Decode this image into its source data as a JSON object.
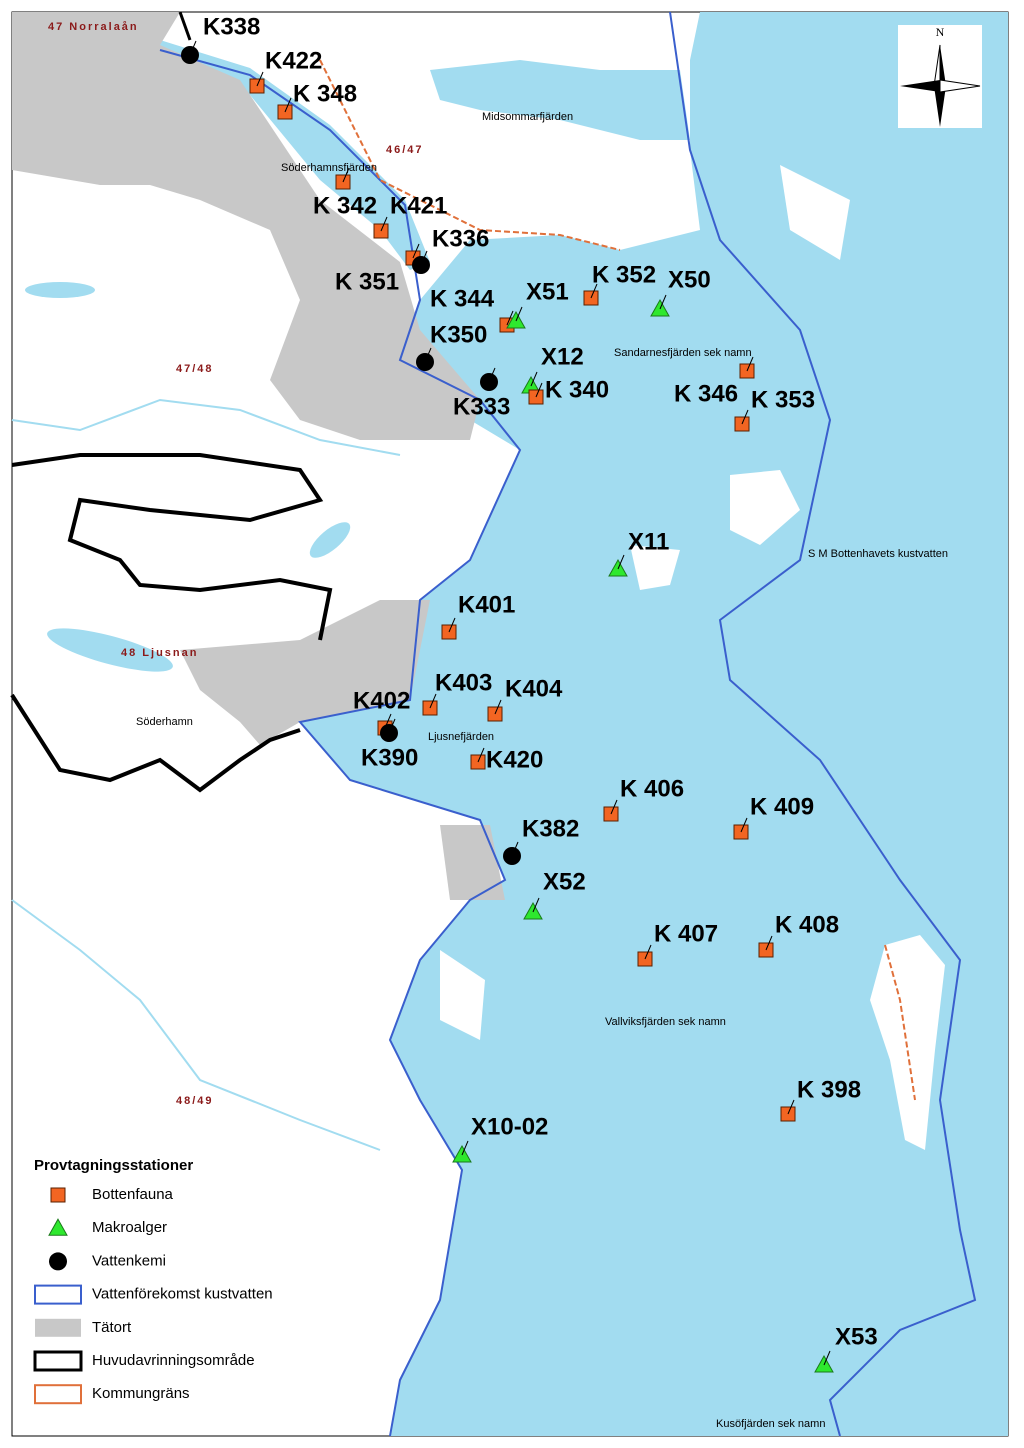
{
  "compass": "N",
  "area_labels": [
    "47 Norralaån",
    "46/47",
    "47/48",
    "48 Ljusnan",
    "48/49",
    "Midsommarfjärden",
    "Söderhamnsfjärden",
    "Sandarnesfjärden sek namn",
    "S M Bottenhavets kustvatten",
    "Söderhamn",
    "Ljusnefjärden",
    "Vallviksfjärden sek namn",
    "Kusöfjärden sek namn"
  ],
  "stations": [
    "K338",
    "K422",
    "K 348",
    "K 342",
    "K421",
    "K336",
    "K 351",
    "K 344",
    "X51",
    "K 352",
    "X50",
    "K350",
    "X12",
    "K 340",
    "K333",
    "K 346",
    "K 353",
    "X11",
    "K401",
    "K403",
    "K404",
    "K402",
    "K390",
    "K420",
    "K 406",
    "K 409",
    "K382",
    "X52",
    "K 407",
    "K 408",
    "K 398",
    "X10-02",
    "X53"
  ],
  "legend": {
    "title": "Provtagningsstationer",
    "items": [
      "Bottenfauna",
      "Makroalger",
      "Vattenkemi",
      "Vattenförekomst kustvatten",
      "Tätort",
      "Huvudavrinningsområde",
      "Kommungräns"
    ]
  }
}
